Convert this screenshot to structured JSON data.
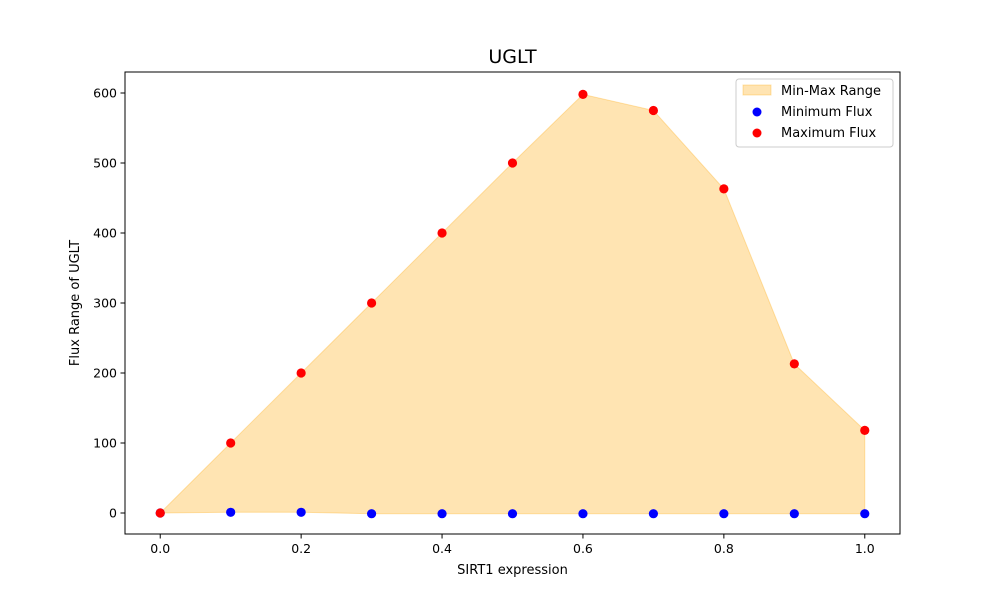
{
  "chart_data": {
    "type": "scatter",
    "title": "UGLT",
    "xlabel": "SIRT1 expression",
    "ylabel": "Flux Range of UGLT",
    "xlim": [
      -0.05,
      1.05
    ],
    "ylim": [
      -30,
      630
    ],
    "x_ticks": [
      0.0,
      0.2,
      0.4,
      0.6,
      0.8,
      1.0
    ],
    "x_tick_labels": [
      "0.0",
      "0.2",
      "0.4",
      "0.6",
      "0.8",
      "1.0"
    ],
    "y_ticks": [
      0,
      100,
      200,
      300,
      400,
      500,
      600
    ],
    "y_tick_labels": [
      "0",
      "100",
      "200",
      "300",
      "400",
      "500",
      "600"
    ],
    "x": [
      0.0,
      0.1,
      0.2,
      0.3,
      0.4,
      0.5,
      0.6,
      0.7,
      0.8,
      0.9,
      1.0
    ],
    "series": [
      {
        "name": "Minimum Flux",
        "kind": "scatter",
        "color": "#0000ff",
        "values": [
          0,
          1,
          1,
          -1,
          -1,
          -1,
          -1,
          -1,
          -1,
          -1,
          -1
        ]
      },
      {
        "name": "Maximum Flux",
        "kind": "scatter",
        "color": "#ff0000",
        "values": [
          0,
          100,
          200,
          300,
          400,
          500,
          598,
          575,
          463,
          213,
          118
        ]
      }
    ],
    "fill_between": {
      "name": "Min-Max Range",
      "color": "#ffa500",
      "lower_series": "Minimum Flux",
      "upper_series": "Maximum Flux"
    },
    "legend": {
      "placement": "top-right",
      "entries": [
        "Min-Max Range",
        "Minimum Flux",
        "Maximum Flux"
      ]
    },
    "grid": false
  }
}
